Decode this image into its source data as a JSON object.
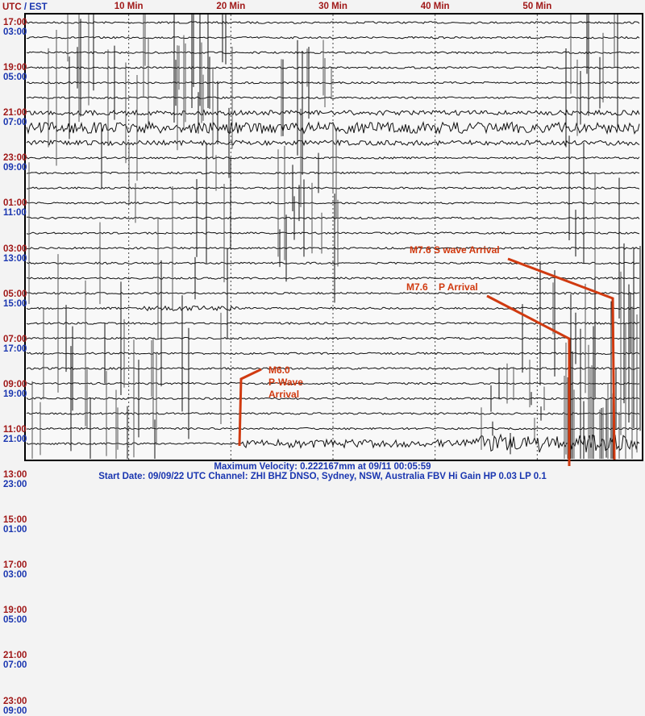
{
  "chart_data": {
    "type": "line",
    "subtype": "helicorder seismogram",
    "corner_label": {
      "utc": "UTC",
      "sep": " / ",
      "est": "EST"
    },
    "x_ticks": [
      {
        "value": 10,
        "label": "10 Min"
      },
      {
        "value": 20,
        "label": "20 Min"
      },
      {
        "value": 30,
        "label": "30 Min"
      },
      {
        "value": 40,
        "label": "40 Min"
      },
      {
        "value": 50,
        "label": "50 Min"
      }
    ],
    "xlim": [
      0,
      60
    ],
    "x_grid": "dotted",
    "y_labels": [
      {
        "utc": "17:00",
        "est": "03:00"
      },
      {
        "utc": "19:00",
        "est": "05:00"
      },
      {
        "utc": "21:00",
        "est": "07:00"
      },
      {
        "utc": "23:00",
        "est": "09:00"
      },
      {
        "utc": "01:00",
        "est": "11:00"
      },
      {
        "utc": "03:00",
        "est": "13:00"
      },
      {
        "utc": "05:00",
        "est": "15:00"
      },
      {
        "utc": "07:00",
        "est": "17:00"
      },
      {
        "utc": "09:00",
        "est": "19:00"
      },
      {
        "utc": "11:00",
        "est": "21:00"
      },
      {
        "utc": "13:00",
        "est": "23:00"
      },
      {
        "utc": "15:00",
        "est": "01:00"
      },
      {
        "utc": "17:00",
        "est": "03:00"
      },
      {
        "utc": "19:00",
        "est": "05:00"
      },
      {
        "utc": "21:00",
        "est": "07:00"
      },
      {
        "utc": "23:00",
        "est": "09:00"
      }
    ],
    "annotations": [
      {
        "text_lines": [
          "M6.0",
          "P-Wave",
          "Arrival"
        ]
      },
      {
        "text": "M7.6 S wave Arrival"
      },
      {
        "text": "M7.6    P Arrival"
      }
    ],
    "colors": {
      "utc": "#a01818",
      "est": "#1a36b0",
      "annotation": "#d03a10",
      "trace": "#111111"
    }
  },
  "footer": {
    "max_velocity": "Maximum Velocity: 0.222167mm at 09/11 00:05:59",
    "start_info": "Start Date: 09/09/22 UTC Channel: ZHI  BHZ  DNSO, Sydney, NSW, Australia  FBV Hi Gain HP 0.03  LP 0.1"
  }
}
